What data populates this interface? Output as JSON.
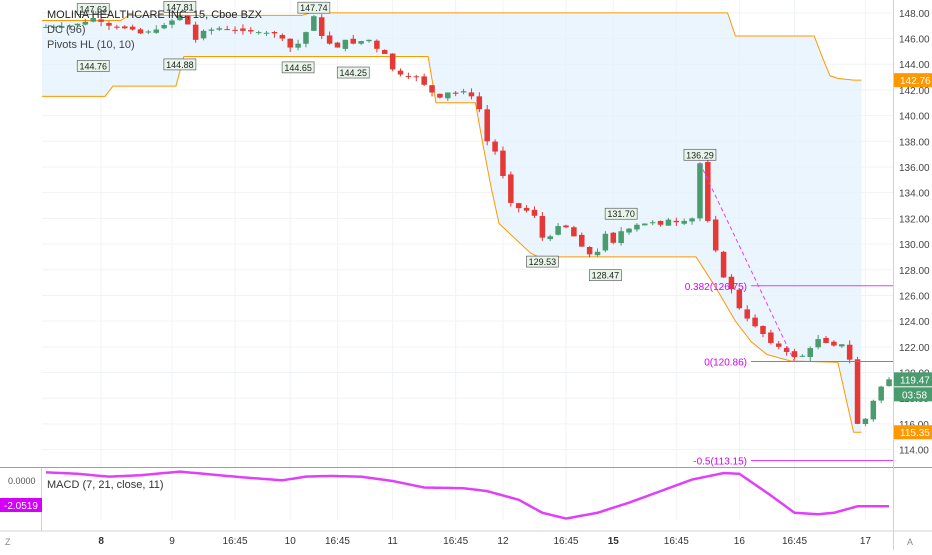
{
  "chart_data": {
    "type": "candlestick",
    "symbol_title": "MOLINA HEALTHCARE INC, 15, Cboe BZX",
    "indicators": [
      "DC (96)",
      "Pivots HL (10, 10)"
    ],
    "y_ticks": [
      "148.00",
      "146.00",
      "144.00",
      "142.00",
      "140.00",
      "138.00",
      "136.00",
      "134.00",
      "132.00",
      "130.00",
      "128.00",
      "126.00",
      "124.00",
      "122.00",
      "120.00",
      "118.00",
      "116.00",
      "114.00"
    ],
    "x_ticks": [
      {
        "label": "8",
        "bold": true
      },
      {
        "label": "9",
        "bold": false
      },
      {
        "label": "16:45",
        "bold": false
      },
      {
        "label": "10",
        "bold": false
      },
      {
        "label": "16:45",
        "bold": false
      },
      {
        "label": "11",
        "bold": false
      },
      {
        "label": "16:45",
        "bold": false
      },
      {
        "label": "12",
        "bold": false
      },
      {
        "label": "16:45",
        "bold": false
      },
      {
        "label": "15",
        "bold": true
      },
      {
        "label": "16:45",
        "bold": false
      },
      {
        "label": "16",
        "bold": false
      },
      {
        "label": "16:45",
        "bold": false
      },
      {
        "label": "17",
        "bold": false
      }
    ],
    "ylim": [
      112.8,
      149.0
    ],
    "price_path": [
      [
        0,
        146.9
      ],
      [
        3,
        147.0
      ],
      [
        5,
        147.3
      ],
      [
        6,
        147.6
      ],
      [
        8,
        147.0
      ],
      [
        11,
        146.7
      ],
      [
        12,
        146.4
      ],
      [
        14,
        146.7
      ],
      [
        16,
        147.4
      ],
      [
        17,
        147.8
      ],
      [
        18,
        147.1
      ],
      [
        19,
        145.9
      ],
      [
        20,
        146.6
      ],
      [
        22,
        146.8
      ],
      [
        25,
        146.6
      ],
      [
        27,
        146.5
      ],
      [
        29,
        146.4
      ],
      [
        30,
        146.0
      ],
      [
        31,
        145.3
      ],
      [
        32,
        145.6
      ],
      [
        33,
        146.5
      ],
      [
        34,
        147.74
      ],
      [
        35,
        146.2
      ],
      [
        36,
        145.6
      ],
      [
        37,
        145.3
      ],
      [
        38,
        145.9
      ],
      [
        39,
        145.6
      ],
      [
        40,
        145.8
      ],
      [
        41,
        145.9
      ],
      [
        42,
        145.2
      ],
      [
        43,
        144.8
      ],
      [
        44,
        143.6
      ],
      [
        45,
        143.2
      ],
      [
        46,
        143.0
      ],
      [
        47,
        143.0
      ],
      [
        48,
        142.4
      ],
      [
        49,
        141.8
      ],
      [
        50,
        141.4
      ],
      [
        51,
        141.8
      ],
      [
        52,
        141.7
      ],
      [
        53,
        141.9
      ],
      [
        54,
        141.5
      ],
      [
        55,
        140.5
      ],
      [
        56,
        138.0
      ],
      [
        57,
        137.2
      ],
      [
        58,
        135.3
      ],
      [
        59,
        133.2
      ],
      [
        60,
        132.8
      ],
      [
        61,
        132.6
      ],
      [
        62,
        132.2
      ],
      [
        63,
        130.5
      ],
      [
        64,
        130.6
      ],
      [
        65,
        131.4
      ],
      [
        66,
        131.3
      ],
      [
        67,
        130.6
      ],
      [
        68,
        129.8
      ],
      [
        69,
        129.2
      ],
      [
        70,
        129.4
      ],
      [
        71,
        130.8
      ],
      [
        72,
        130.1
      ],
      [
        73,
        131.0
      ],
      [
        74,
        131.2
      ],
      [
        75,
        131.5
      ],
      [
        76,
        131.6
      ],
      [
        77,
        131.7
      ],
      [
        78,
        131.5
      ],
      [
        79,
        131.9
      ],
      [
        80,
        131.7
      ],
      [
        81,
        131.8
      ],
      [
        82,
        132.0
      ],
      [
        83,
        136.29
      ],
      [
        84,
        131.8
      ],
      [
        85,
        129.5
      ],
      [
        86,
        127.4
      ],
      [
        87,
        126.5
      ],
      [
        88,
        125.0
      ],
      [
        89,
        124.2
      ],
      [
        90,
        123.6
      ],
      [
        91,
        123.0
      ],
      [
        92,
        122.3
      ],
      [
        93,
        122.0
      ],
      [
        94,
        121.6
      ],
      [
        95,
        121.2
      ],
      [
        96,
        121.3
      ],
      [
        97,
        121.9
      ],
      [
        98,
        122.6
      ],
      [
        99,
        122.3
      ],
      [
        100,
        122.1
      ],
      [
        101,
        122.2
      ],
      [
        102,
        121.0
      ],
      [
        103,
        116.0
      ],
      [
        104,
        116.4
      ],
      [
        105,
        117.8
      ],
      [
        106,
        118.9
      ],
      [
        107,
        119.47
      ]
    ],
    "donchian_upper": [
      [
        0,
        147.4
      ],
      [
        10,
        147.4
      ],
      [
        11,
        147.8
      ],
      [
        33,
        147.8
      ],
      [
        34,
        148.0
      ],
      [
        87,
        148.0
      ],
      [
        88,
        146.2
      ],
      [
        98,
        146.2
      ],
      [
        99,
        144.6
      ],
      [
        100,
        143.1
      ],
      [
        101,
        142.9
      ],
      [
        103,
        142.76
      ]
    ],
    "donchian_lower": [
      [
        0,
        141.5
      ],
      [
        8,
        141.5
      ],
      [
        9,
        142.3
      ],
      [
        17,
        142.3
      ],
      [
        18,
        144.6
      ],
      [
        49,
        144.6
      ],
      [
        50,
        141.0
      ],
      [
        55,
        141.0
      ],
      [
        56,
        137.6
      ],
      [
        57,
        134.4
      ],
      [
        58,
        131.6
      ],
      [
        62,
        129.3
      ],
      [
        63,
        129.0
      ],
      [
        83,
        129.0
      ],
      [
        85,
        127.1
      ],
      [
        86,
        126.1
      ],
      [
        88,
        124.0
      ],
      [
        90,
        122.4
      ],
      [
        92,
        121.4
      ],
      [
        95,
        120.9
      ],
      [
        101,
        120.8
      ],
      [
        103,
        115.35
      ],
      [
        104,
        115.35
      ]
    ],
    "pivots": [
      {
        "i": 6,
        "price": 147.63,
        "label": "147.63",
        "kind": "high"
      },
      {
        "i": 17,
        "price": 147.81,
        "label": "147.81",
        "kind": "high"
      },
      {
        "i": 34,
        "price": 147.74,
        "label": "147.74",
        "kind": "high"
      },
      {
        "i": 73,
        "price": 131.7,
        "label": "131.70",
        "kind": "high"
      },
      {
        "i": 83,
        "price": 136.29,
        "label": "136.29",
        "kind": "high"
      },
      {
        "i": 6,
        "price": 144.76,
        "label": "144.76",
        "kind": "low"
      },
      {
        "i": 17,
        "price": 144.88,
        "label": "144.88",
        "kind": "low"
      },
      {
        "i": 32,
        "price": 144.65,
        "label": "144.65",
        "kind": "low"
      },
      {
        "i": 39,
        "price": 144.25,
        "label": "144.25",
        "kind": "low"
      },
      {
        "i": 63,
        "price": 129.53,
        "label": "129.53",
        "kind": "low"
      },
      {
        "i": 71,
        "price": 128.47,
        "label": "128.47",
        "kind": "low"
      }
    ],
    "fib_levels": [
      {
        "price": 126.75,
        "label": "0.382(126.75)"
      },
      {
        "price": 120.86,
        "label": "0(120.86)"
      },
      {
        "price": 113.15,
        "label": "-0.5(113.15)"
      }
    ],
    "fib_diagonal": [
      [
        83,
        136.29
      ],
      [
        95,
        120.86
      ]
    ],
    "price_tags": [
      {
        "price": 142.76,
        "label": "142.76",
        "color": "#ff9800"
      },
      {
        "price": 119.47,
        "label": "119.47",
        "color": "#4a9b6e"
      },
      {
        "price": 115.35,
        "label": "115.35",
        "color": "#ff9800"
      }
    ],
    "countdown": "03:58",
    "macd": {
      "title": "MACD (7, 21, close, 11)",
      "y_label_top": "0.0000",
      "current_tag": "-2.0519",
      "ylim": [
        -3.0,
        0.6
      ],
      "path": [
        [
          0,
          0.3
        ],
        [
          4,
          0.2
        ],
        [
          8,
          0.0
        ],
        [
          12,
          0.1
        ],
        [
          17,
          0.35
        ],
        [
          20,
          0.2
        ],
        [
          25,
          -0.05
        ],
        [
          30,
          -0.25
        ],
        [
          33,
          0.0
        ],
        [
          36,
          0.05
        ],
        [
          40,
          0.0
        ],
        [
          44,
          -0.3
        ],
        [
          48,
          -0.75
        ],
        [
          53,
          -0.8
        ],
        [
          56,
          -1.0
        ],
        [
          60,
          -1.6
        ],
        [
          63,
          -2.5
        ],
        [
          66,
          -2.9
        ],
        [
          70,
          -2.5
        ],
        [
          74,
          -1.8
        ],
        [
          78,
          -1.0
        ],
        [
          82,
          -0.2
        ],
        [
          86,
          0.25
        ],
        [
          88,
          0.2
        ],
        [
          92,
          -1.3
        ],
        [
          95,
          -2.5
        ],
        [
          98,
          -2.6
        ],
        [
          100,
          -2.5
        ],
        [
          103,
          -2.05
        ],
        [
          107,
          -2.05
        ]
      ]
    }
  }
}
